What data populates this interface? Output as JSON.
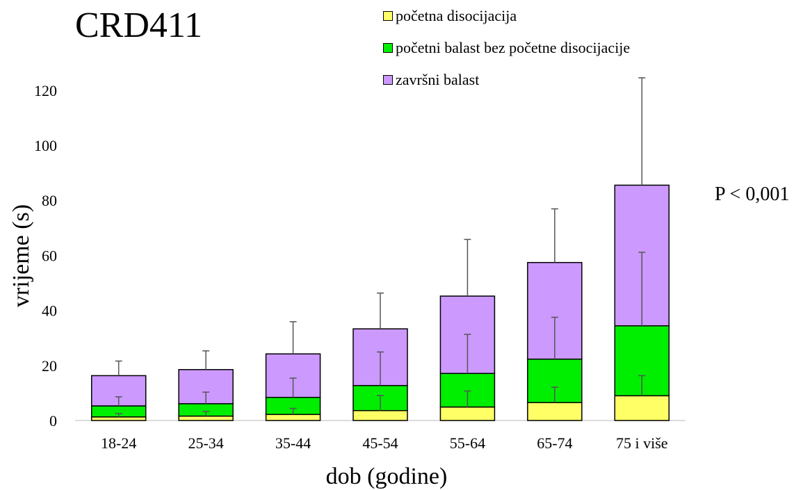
{
  "chart_data": {
    "type": "bar",
    "stacked": true,
    "title": "CRD411",
    "xlabel": "dob (godine)",
    "ylabel": "vrijeme (s)",
    "annotation": "P < 0,001",
    "categories": [
      "18-24",
      "25-34",
      "35-44",
      "45-54",
      "55-64",
      "65-74",
      "75 i više"
    ],
    "ylim": [
      0,
      125
    ],
    "yticks": [
      0,
      20,
      40,
      60,
      80,
      100,
      120
    ],
    "grid": false,
    "legend_position": "top",
    "series": [
      {
        "name": "početna disocijacija",
        "color": "#ffff66",
        "values": [
          1.3,
          1.6,
          2.2,
          3.6,
          4.9,
          6.5,
          9.0
        ],
        "error_top": [
          2.5,
          3.3,
          4.4,
          9.1,
          10.7,
          12.1,
          16.3
        ]
      },
      {
        "name": "početni balast bez početne disocijacije",
        "color": "#00ee00",
        "values": [
          4.0,
          4.5,
          6.2,
          9.1,
          12.2,
          15.8,
          25.4
        ],
        "error_top": [
          8.6,
          10.3,
          15.4,
          24.9,
          31.3,
          37.5,
          61.1
        ]
      },
      {
        "name": "završni balast",
        "color": "#cc99ff",
        "values": [
          11.0,
          12.4,
          15.8,
          20.6,
          28.1,
          35.1,
          51.1
        ],
        "error_top": [
          21.6,
          25.3,
          35.9,
          46.3,
          65.8,
          76.9,
          124.5
        ]
      }
    ]
  }
}
